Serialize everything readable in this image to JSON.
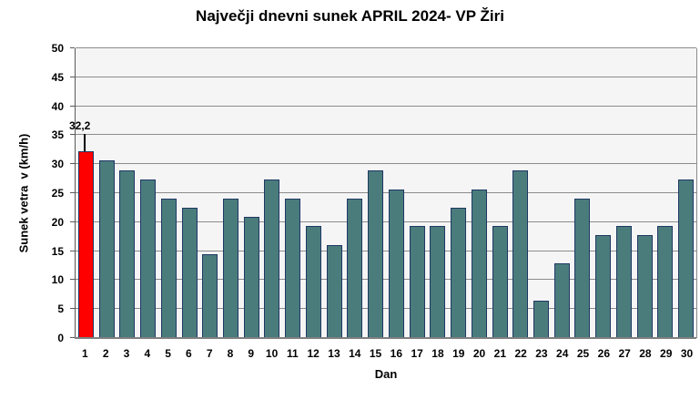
{
  "title": "Največji dnevni sunek APRIL 2024- VP Žiri",
  "chart_data": {
    "type": "bar",
    "title": "Največji dnevni sunek APRIL 2024- VP Žiri",
    "xlabel": "Dan",
    "ylabel": "Sunek vetra  v (km/h)",
    "ylim": [
      0,
      50
    ],
    "yticks": [
      0,
      5,
      10,
      15,
      20,
      25,
      30,
      35,
      40,
      45,
      50
    ],
    "grid": true,
    "legend_position": "none",
    "categories": [
      "1",
      "2",
      "3",
      "4",
      "5",
      "6",
      "7",
      "8",
      "9",
      "10",
      "11",
      "12",
      "13",
      "14",
      "15",
      "16",
      "17",
      "18",
      "19",
      "20",
      "21",
      "22",
      "23",
      "24",
      "25",
      "26",
      "27",
      "28",
      "29",
      "30"
    ],
    "values": [
      32.2,
      30.6,
      29.0,
      27.4,
      24.1,
      22.5,
      14.5,
      24.1,
      20.9,
      27.4,
      24.1,
      19.3,
      16.1,
      24.1,
      29.0,
      25.7,
      19.3,
      19.3,
      22.5,
      25.7,
      19.3,
      29.0,
      6.4,
      12.9,
      24.1,
      17.7,
      19.3,
      17.7,
      19.3,
      27.4
    ],
    "highlight_index": 0,
    "annotation": {
      "text": "32,2",
      "day": "1",
      "value": 32.2
    },
    "colors": {
      "bar_fill": "#4A7C7C",
      "bar_border": "#1F3864",
      "highlight_fill": "#FF0000",
      "plot_background": "#F5F5F5",
      "gridline": "#8C8C8C",
      "axis_line": "#595959",
      "baseline": "#808080",
      "text": "#000000"
    }
  }
}
